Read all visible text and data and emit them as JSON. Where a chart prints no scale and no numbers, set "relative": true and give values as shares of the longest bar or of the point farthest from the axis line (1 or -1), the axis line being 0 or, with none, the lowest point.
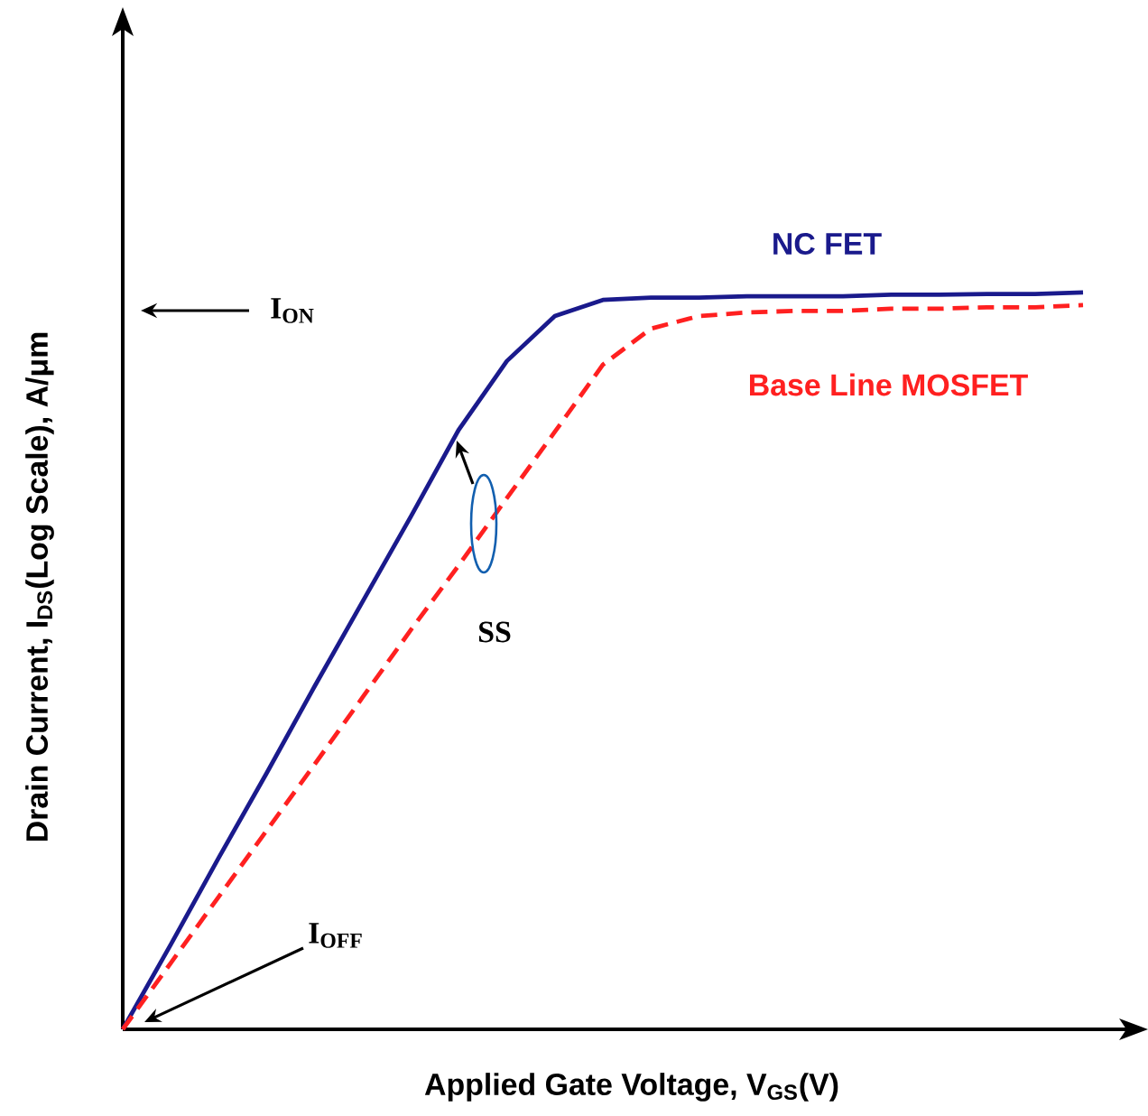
{
  "chart_data": {
    "type": "line",
    "relative": true,
    "xlabel": "Applied Gate Voltage, V$_{GS}$(V)",
    "ylabel": "Drain Current, I$_{DS}$(Log Scale), A/μm",
    "categories": [
      null,
      null,
      null,
      null,
      null,
      null,
      null,
      null,
      null,
      null,
      null,
      null,
      null,
      null,
      null,
      null,
      null,
      null,
      null,
      null,
      null
    ],
    "series": [
      {
        "name": "NC FET",
        "color": "#1a1a8c",
        "line_style": "solid",
        "values": [
          0,
          0.115,
          0.233,
          0.348,
          0.466,
          0.581,
          0.696,
          0.814,
          0.907,
          0.968,
          0.99,
          0.993,
          0.993,
          0.995,
          0.995,
          0.995,
          0.997,
          0.997,
          0.998,
          0.998,
          1
        ]
      },
      {
        "name": "Base Line MOSFET",
        "color": "#ff2020",
        "line_style": "dashed",
        "values": [
          0,
          0.09,
          0.18,
          0.27,
          0.36,
          0.451,
          0.542,
          0.63,
          0.721,
          0.811,
          0.902,
          0.951,
          0.968,
          0.973,
          0.975,
          0.975,
          0.978,
          0.978,
          0.98,
          0.98,
          0.983
        ]
      }
    ],
    "annotations": [
      "I$_{ON}$",
      "I$_{OFF}$",
      "SS"
    ],
    "legend": false,
    "marker": "none"
  }
}
